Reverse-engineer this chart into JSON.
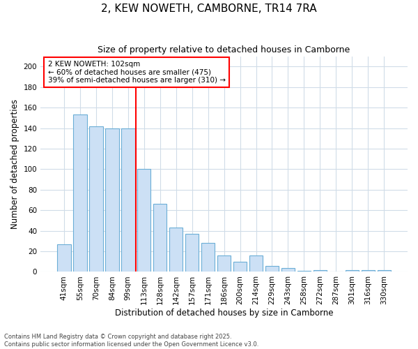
{
  "title": "2, KEW NOWETH, CAMBORNE, TR14 7RA",
  "subtitle": "Size of property relative to detached houses in Camborne",
  "xlabel": "Distribution of detached houses by size in Camborne",
  "ylabel": "Number of detached properties",
  "categories": [
    "41sqm",
    "55sqm",
    "70sqm",
    "84sqm",
    "99sqm",
    "113sqm",
    "128sqm",
    "142sqm",
    "157sqm",
    "171sqm",
    "186sqm",
    "200sqm",
    "214sqm",
    "229sqm",
    "243sqm",
    "258sqm",
    "272sqm",
    "287sqm",
    "301sqm",
    "316sqm",
    "330sqm"
  ],
  "values": [
    27,
    153,
    142,
    140,
    140,
    100,
    66,
    43,
    37,
    28,
    16,
    10,
    16,
    6,
    4,
    1,
    2,
    0,
    2,
    2,
    2
  ],
  "bar_color": "#cce0f5",
  "bar_edge_color": "#6baed6",
  "vline_x": 4.5,
  "vline_color": "red",
  "annotation_text": "2 KEW NOWETH: 102sqm\n← 60% of detached houses are smaller (475)\n39% of semi-detached houses are larger (310) →",
  "annotation_box_color": "white",
  "annotation_box_edge_color": "red",
  "ylim": [
    0,
    210
  ],
  "yticks": [
    0,
    20,
    40,
    60,
    80,
    100,
    120,
    140,
    160,
    180,
    200
  ],
  "footnote": "Contains HM Land Registry data © Crown copyright and database right 2025.\nContains public sector information licensed under the Open Government Licence v3.0.",
  "background_color": "#ffffff",
  "grid_color": "#d0dce8",
  "title_fontsize": 11,
  "subtitle_fontsize": 9,
  "tick_fontsize": 7.5,
  "ylabel_fontsize": 8.5,
  "xlabel_fontsize": 8.5,
  "footnote_fontsize": 6,
  "annotation_fontsize": 7.5
}
